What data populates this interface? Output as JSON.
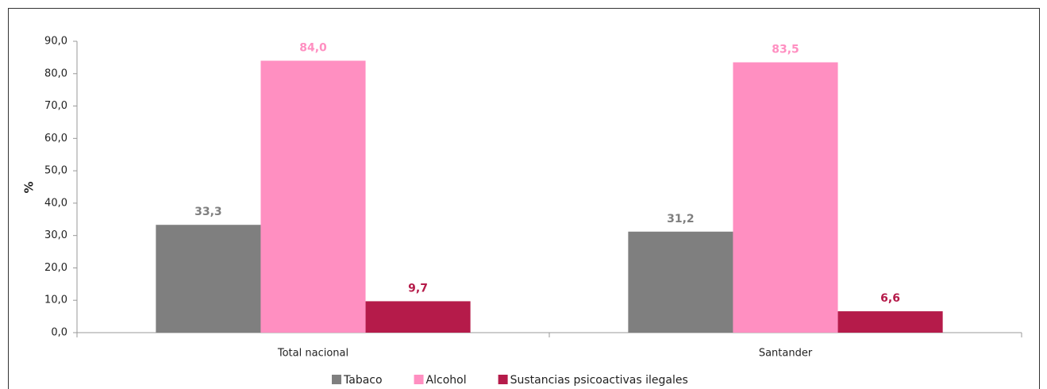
{
  "chart_data": {
    "type": "bar",
    "y_label": "%",
    "categories": [
      "Total nacional",
      "Santander"
    ],
    "series": [
      {
        "name": "Tabaco",
        "color": "#7f7f7f",
        "values": [
          33.3,
          31.2
        ],
        "value_labels": [
          "33,3",
          "31,2"
        ]
      },
      {
        "name": "Alcohol",
        "color": "#ff8fc1",
        "values": [
          84.0,
          83.5
        ],
        "value_labels": [
          "84,0",
          "83,5"
        ]
      },
      {
        "name": "Sustancias psicoactivas ilegales",
        "color": "#b51b4a",
        "values": [
          9.7,
          6.6
        ],
        "value_labels": [
          "9,7",
          "6,6"
        ]
      }
    ],
    "ylim": [
      0,
      90
    ],
    "yticks": [
      {
        "value": 0,
        "label": "0,0"
      },
      {
        "value": 10,
        "label": "10,0"
      },
      {
        "value": 20,
        "label": "20,0"
      },
      {
        "value": 30,
        "label": "30,0"
      },
      {
        "value": 40,
        "label": "40,0"
      },
      {
        "value": 50,
        "label": "50,0"
      },
      {
        "value": 60,
        "label": "60,0"
      },
      {
        "value": 70,
        "label": "70,0"
      },
      {
        "value": 80,
        "label": "80,0"
      },
      {
        "value": 90,
        "label": "90,0"
      }
    ],
    "legend": "bottom"
  }
}
